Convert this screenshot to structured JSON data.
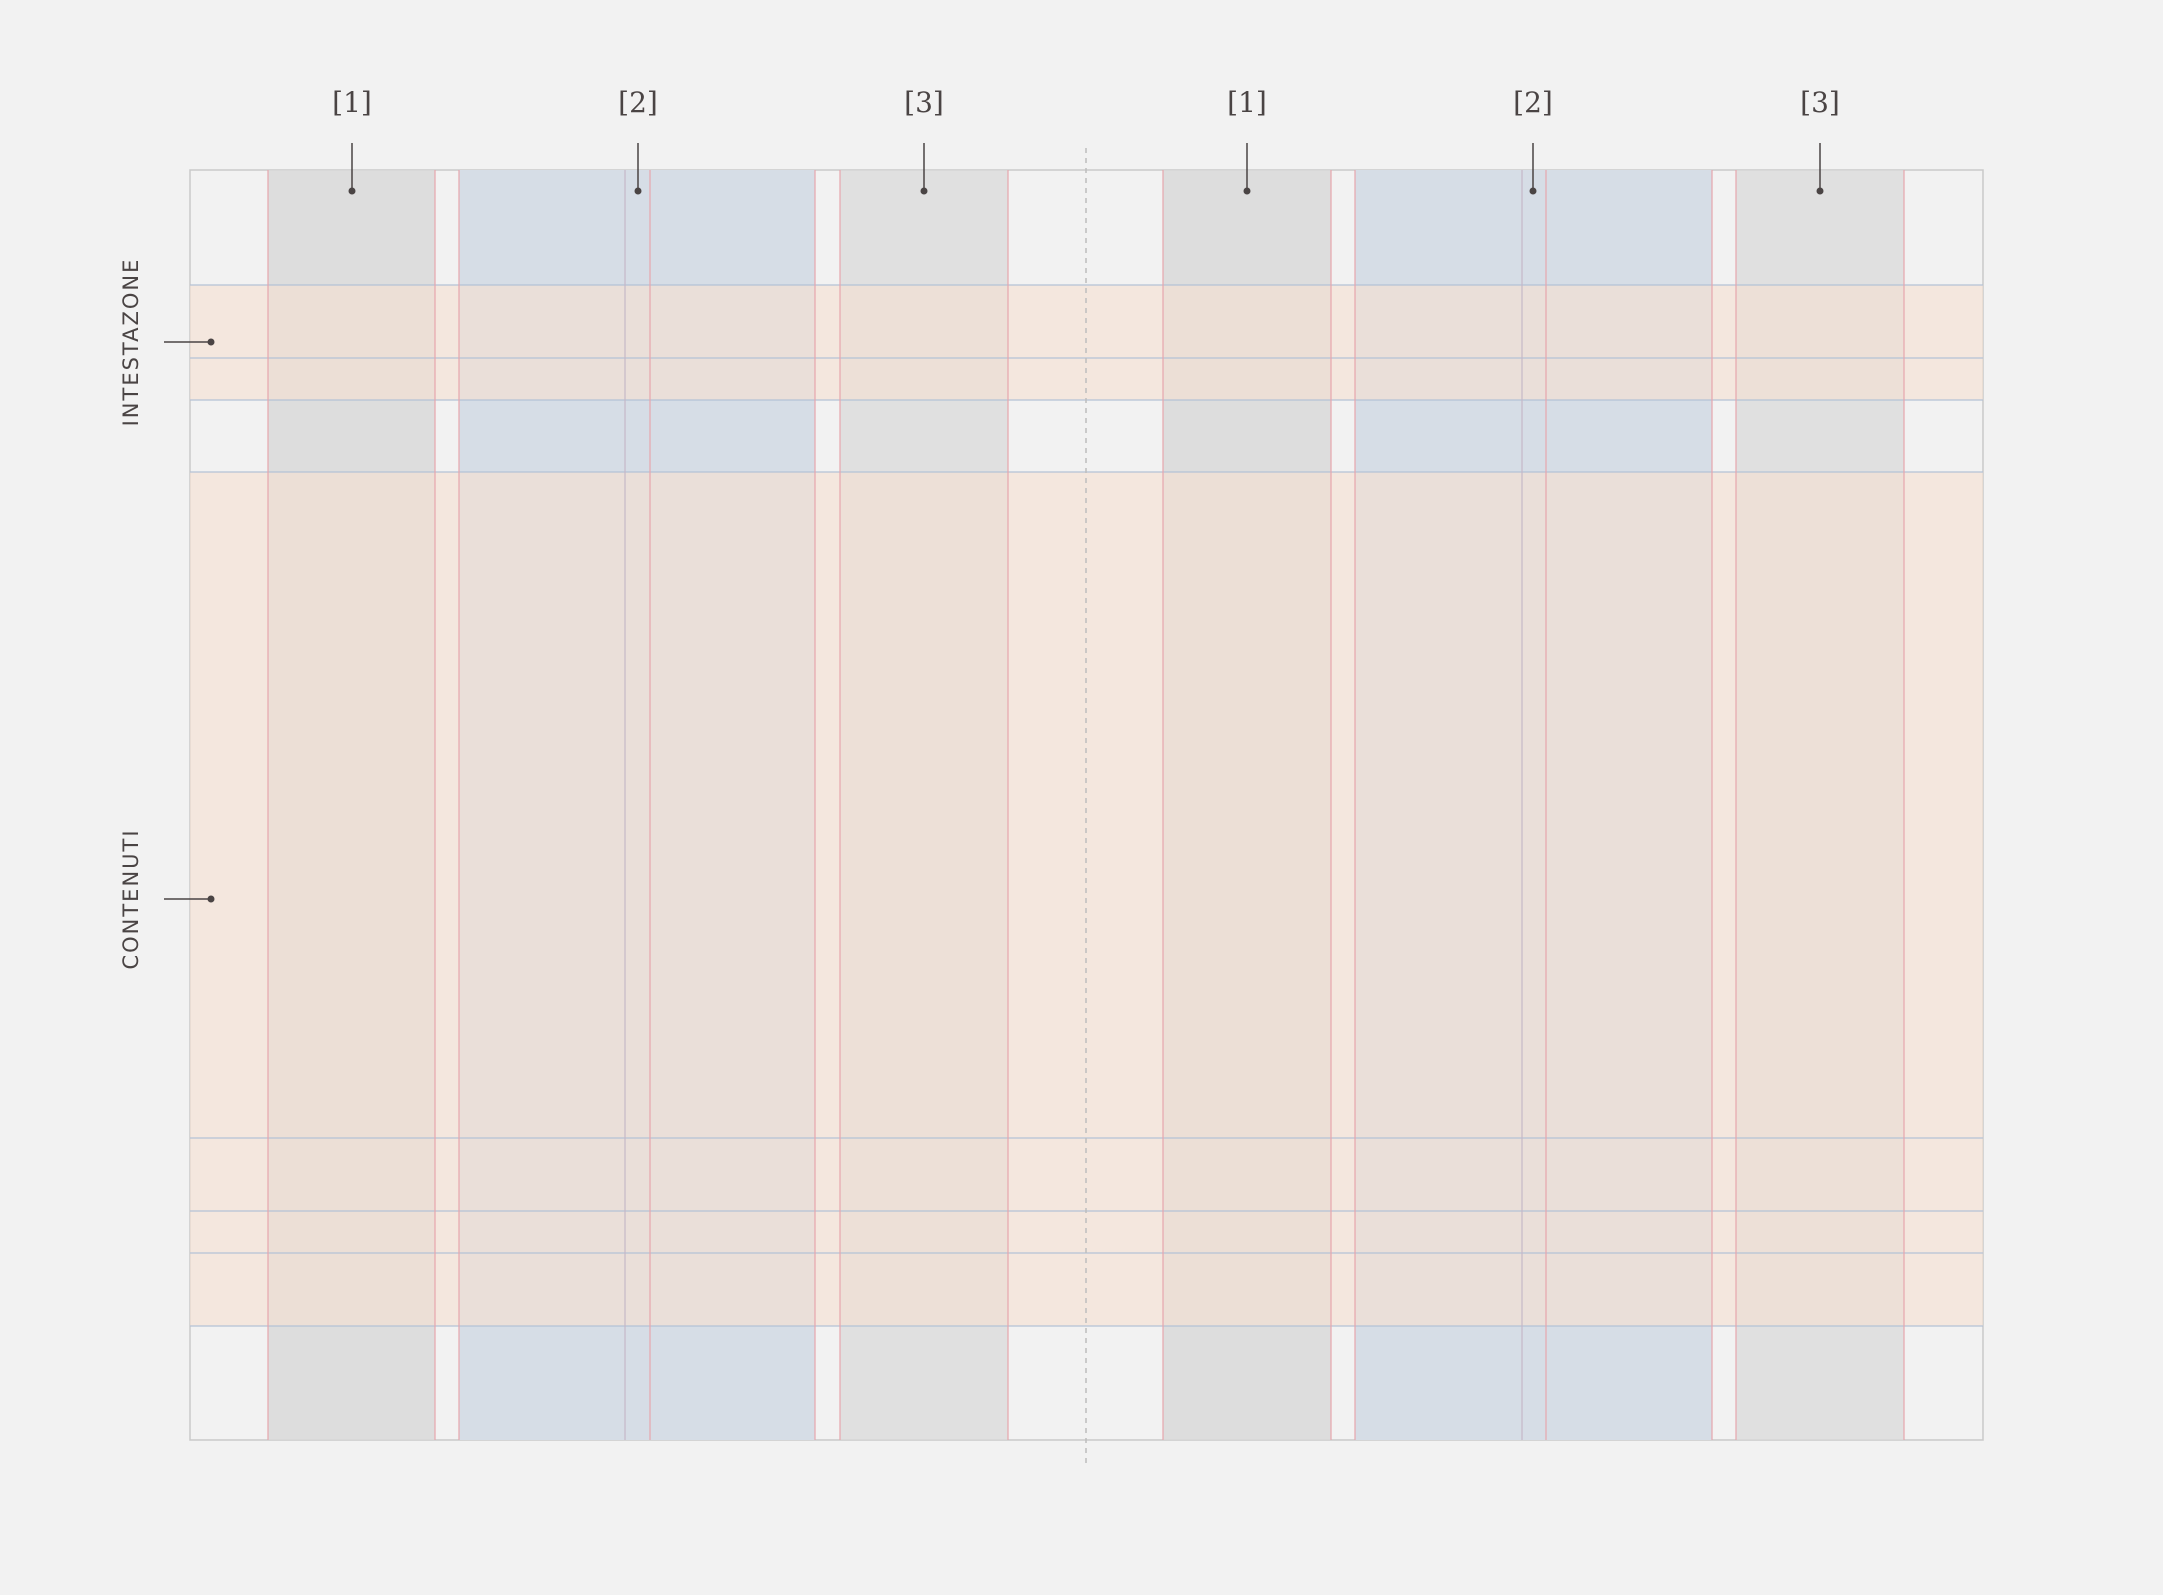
{
  "column_labels": {
    "left_1": "[1]",
    "left_2": "[2]",
    "left_3": "[3]",
    "right_1": "[1]",
    "right_2": "[2]",
    "right_3": "[3]"
  },
  "zone_labels": {
    "header": "INTESTAZONE",
    "content": "CONTENUTI"
  },
  "colors": {
    "background": "#f2f2f2",
    "column_gray": "#d9d9d9",
    "column_blue": "#d6dde6",
    "row_band": "#f5e1d3",
    "frame_line": "#c9c9c9",
    "guide_pink": "#e7a6ad",
    "guide_blue": "#b4c2d6",
    "callout": "#4a4444"
  }
}
